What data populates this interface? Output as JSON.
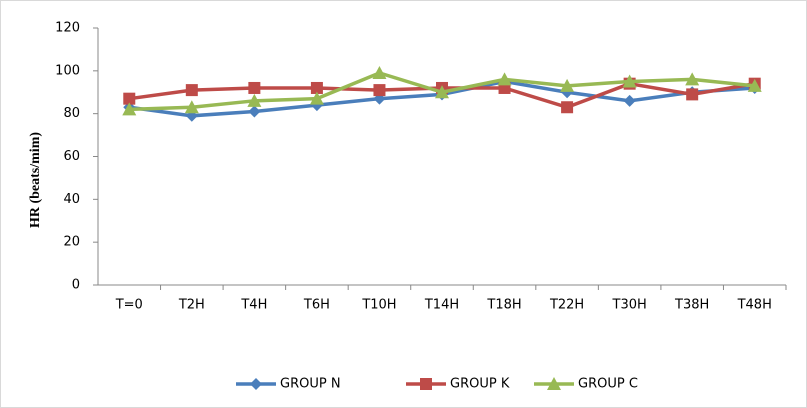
{
  "chart_data": {
    "type": "line",
    "y_label": "HR (beats/mim)",
    "categories": [
      "T=0",
      "T2H",
      "T4H",
      "T6H",
      "T10H",
      "T14H",
      "T18H",
      "T22H",
      "T30H",
      "T38H",
      "T48H"
    ],
    "series": [
      {
        "name": "GROUP N",
        "color": "#4a7ebb",
        "marker": "diamond",
        "values": [
          83,
          79,
          81,
          84,
          87,
          89,
          95,
          90,
          86,
          90,
          92
        ]
      },
      {
        "name": "GROUP K",
        "color": "#be4b48",
        "marker": "square",
        "values": [
          87,
          91,
          92,
          92,
          91,
          92,
          92,
          83,
          94,
          89,
          94
        ]
      },
      {
        "name": "GROUP C",
        "color": "#98b954",
        "marker": "triangle",
        "values": [
          82,
          83,
          86,
          87,
          99,
          90,
          96,
          93,
          95,
          96,
          93
        ]
      }
    ],
    "ylim": [
      0,
      120
    ],
    "yticks": [
      0,
      20,
      40,
      60,
      80,
      100,
      120
    ],
    "grid": false,
    "legend": "bottom"
  }
}
